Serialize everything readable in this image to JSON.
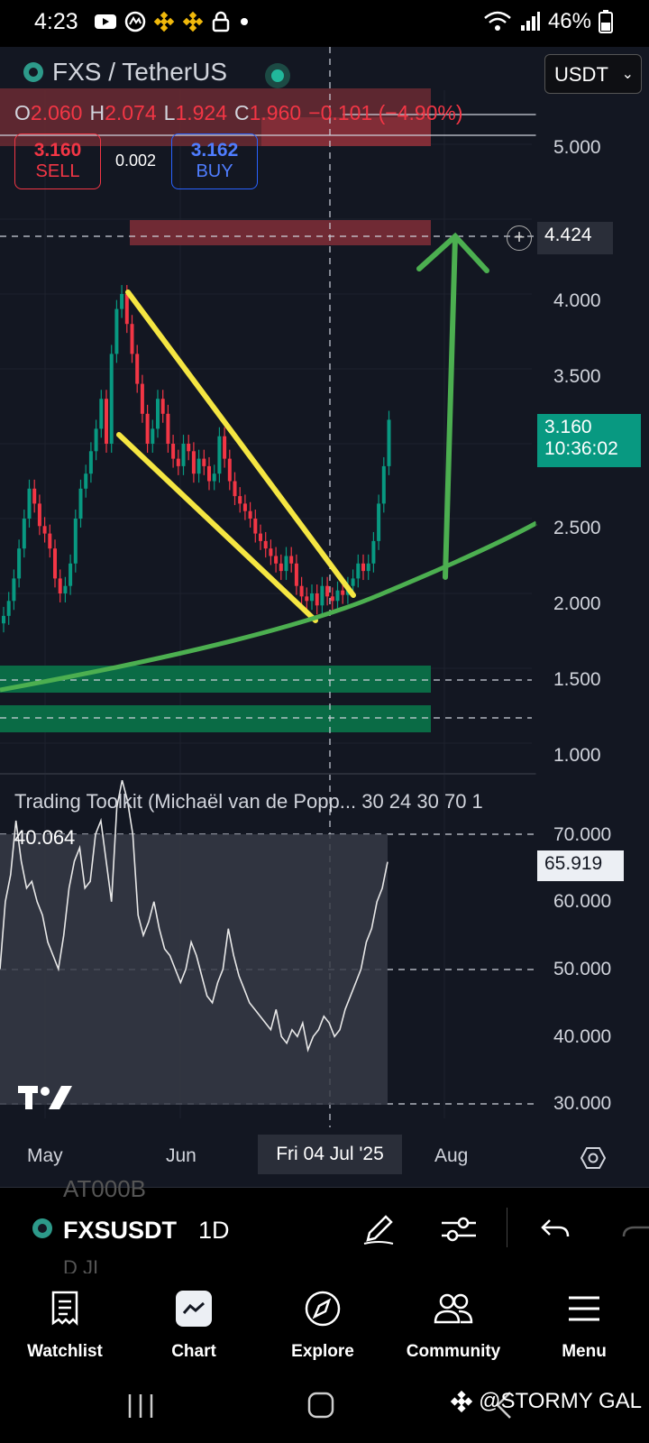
{
  "status_bar": {
    "time": "4:23",
    "battery": "46%"
  },
  "header": {
    "pair": "FXS / TetherUS",
    "quote_select": "USDT"
  },
  "ohlc": {
    "o_label": "O",
    "o": "2.060",
    "h_label": "H",
    "h": "2.074",
    "l_label": "L",
    "l": "1.924",
    "c_label": "C",
    "c": "1.960",
    "change": "−0.101 (−4.90%)"
  },
  "trade": {
    "sell_price": "3.160",
    "sell_label": "SELL",
    "spread": "0.002",
    "buy_price": "3.162",
    "buy_label": "BUY"
  },
  "price_axis": [
    "5.000",
    "4.000",
    "3.500",
    "2.500",
    "2.000",
    "1.500",
    "1.000"
  ],
  "tags": {
    "crosshair_price": "4.424",
    "current_price": "3.160",
    "countdown": "10:36:02",
    "rsi_current": "65.919"
  },
  "indicator": {
    "title": "Trading Toolkit (Michaël van de Popp... 30 24 30 70 1",
    "value": "40.064",
    "axis": [
      "70.000",
      "60.000",
      "50.000",
      "40.000",
      "30.000"
    ]
  },
  "time_axis": {
    "may": "May",
    "jun": "Jun",
    "crosshair_date": "Fri 04 Jul '25",
    "aug": "Aug"
  },
  "toolbar": {
    "ghost_top": "AT000B",
    "symbol": "FXSUSDT",
    "interval": "1D",
    "ghost_bottom": "D JI"
  },
  "nav": {
    "watchlist": "Watchlist",
    "chart": "Chart",
    "explore": "Explore",
    "community": "Community",
    "menu": "Menu"
  },
  "watermark": "@STORMY GAL",
  "colors": {
    "up": "#089981",
    "down": "#f23645",
    "pattern": "#f5e642",
    "arrow": "#4caf50",
    "bg": "#131722"
  }
}
